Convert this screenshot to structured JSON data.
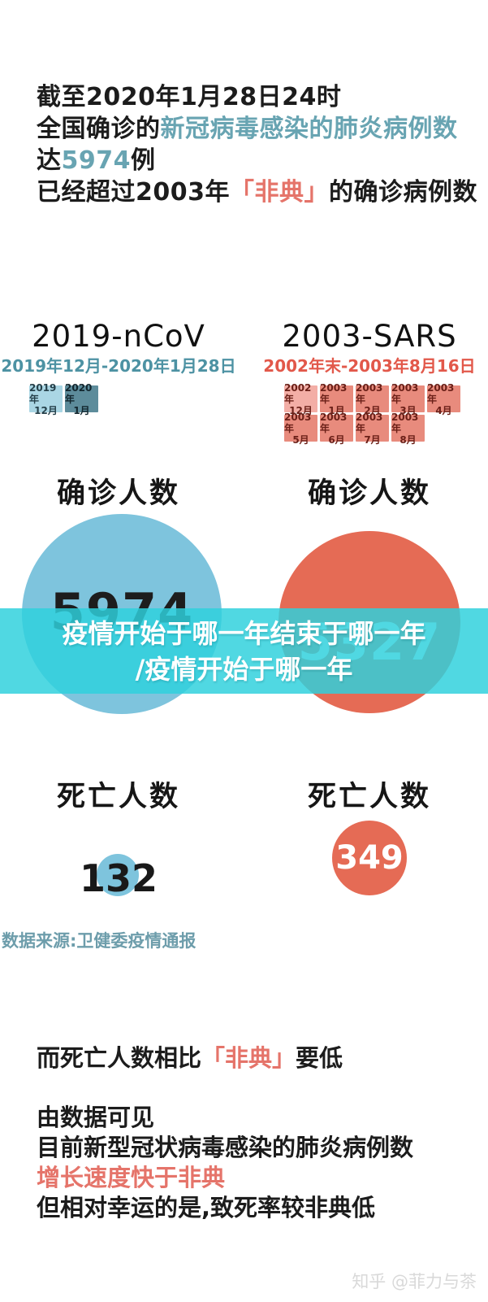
{
  "headline": {
    "line1": "截至2020年1月28日24时",
    "line2": {
      "prefix": "全国确诊的",
      "highlight": "新冠病毒感染的肺炎病例数"
    },
    "line3": {
      "prefix": "达",
      "number": "5974",
      "suffix": "例"
    },
    "line4": {
      "prefix": "已经超过2003年",
      "highlight": "「非典」",
      "suffix": "的确诊病例数"
    }
  },
  "comparison": {
    "ncov": {
      "title": "2019-nCoV",
      "period": "2019年12月-2020年1月28日",
      "months": [
        {
          "year": "2019年",
          "month": "12月"
        },
        {
          "year": "2020年",
          "month": "1月"
        }
      ],
      "confirmed_label": "确诊人数",
      "confirmed_value": "5974",
      "deaths_label": "死亡人数",
      "deaths_value": "132"
    },
    "sars": {
      "title": "2003-SARS",
      "period": "2002年末-2003年8月16日",
      "months": [
        {
          "year": "2002年",
          "month": "12月"
        },
        {
          "year": "2003年",
          "month": "1月"
        },
        {
          "year": "2003年",
          "month": "2月"
        },
        {
          "year": "2003年",
          "month": "3月"
        },
        {
          "year": "2003年",
          "month": "4月"
        },
        {
          "year": "2003年",
          "month": "5月"
        },
        {
          "year": "2003年",
          "month": "6月"
        },
        {
          "year": "2003年",
          "month": "7月"
        },
        {
          "year": "2003年",
          "month": "8月"
        }
      ],
      "confirmed_label": "确诊人数",
      "confirmed_value": "5327",
      "deaths_label": "死亡人数",
      "deaths_value": "349"
    }
  },
  "overlay": {
    "line1": "疫情开始于哪一年结束于哪一年",
    "line2": "/疫情开始于哪一年"
  },
  "source_note": "数据来源:卫健委疫情通报",
  "conclusion": {
    "line1": {
      "prefix": "而死亡人数相比",
      "highlight": "「非典」",
      "suffix": "要低"
    },
    "line2": "由数据可见",
    "line3": "目前新型冠状病毒感染的肺炎病例数",
    "line4": "增长速度快于非典",
    "line5": "但相对幸运的是,致死率较非典低"
  },
  "watermark": "知乎 @菲力与茶",
  "colors": {
    "teal_text": "#68a4b2",
    "salmon_text": "#e5746a",
    "ncov_circle": "#7ec4dd",
    "sars_circle": "#e56b55",
    "banner": "rgba(47,208,220,0.84)",
    "ncov_cell_light": "#aad6e4",
    "ncov_cell_dark": "#5d8c9b",
    "sars_cell_light": "#f3aea6",
    "sars_cell_dark": "#e88b7d",
    "source_note": "#6d9dab",
    "watermark": "#d9d9d9"
  },
  "chart_data": {
    "type": "bar",
    "subtype": "proportional-area-circles",
    "categories": [
      "2019-nCoV",
      "2003-SARS"
    ],
    "series": [
      {
        "name": "确诊人数",
        "values": [
          5974,
          5327
        ]
      },
      {
        "name": "死亡人数",
        "values": [
          132,
          349
        ]
      }
    ],
    "periods": [
      "2019年12月-2020年1月28日",
      "2002年末-2003年8月16日"
    ],
    "timeline_months": {
      "ncov": [
        "2019年12月",
        "2020年1月"
      ],
      "sars": [
        "2002年12月",
        "2003年1月",
        "2003年2月",
        "2003年3月",
        "2003年4月",
        "2003年5月",
        "2003年6月",
        "2003年7月",
        "2003年8月"
      ]
    },
    "legend_position": "none",
    "grid": false
  }
}
